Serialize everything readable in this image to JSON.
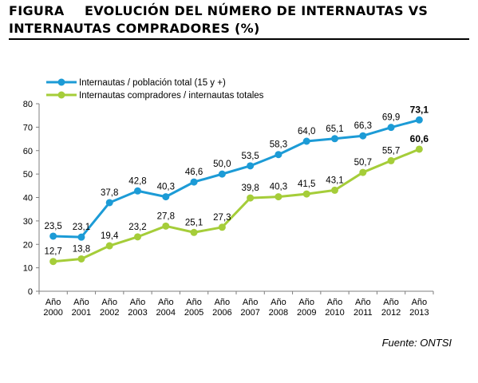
{
  "figure": {
    "label": "FIGURA",
    "title_line1": "EVOLUCIÓN DEL NÚMERO DE INTERNAUTAS VS",
    "title_line2": "INTERNAUTAS COMPRADORES (%)",
    "source": "Fuente: ONTSI"
  },
  "chart_data": {
    "type": "line",
    "categories_top": [
      "Año",
      "Año",
      "Año",
      "Año",
      "Año",
      "Año",
      "Año",
      "Año",
      "Año",
      "Año",
      "Año",
      "Año",
      "Año",
      "Año"
    ],
    "categories": [
      "2000",
      "2001",
      "2002",
      "2003",
      "2004",
      "2005",
      "2006",
      "2007",
      "2008",
      "2009",
      "2010",
      "2011",
      "2012",
      "2013"
    ],
    "ylim": [
      0,
      80
    ],
    "yticks": [
      0,
      10,
      20,
      30,
      40,
      50,
      60,
      70,
      80
    ],
    "grid": false,
    "legend_position": "top-left",
    "series": [
      {
        "name": "Internautas / población total (15 y +)",
        "color": "#1c9bd6",
        "values": [
          23.5,
          23.1,
          37.8,
          42.8,
          40.3,
          46.6,
          50.0,
          53.5,
          58.3,
          64.0,
          65.1,
          66.3,
          69.9,
          73.1
        ],
        "labels": [
          "23,5",
          "23,1",
          "37,8",
          "42,8",
          "40,3",
          "46,6",
          "50,0",
          "53,5",
          "58,3",
          "64,0",
          "65,1",
          "66,3",
          "69,9",
          "73,1"
        ]
      },
      {
        "name": "Internautas compradores / internautas totales",
        "color": "#a5cd39",
        "values": [
          12.7,
          13.8,
          19.4,
          23.2,
          27.8,
          25.1,
          27.3,
          39.8,
          40.3,
          41.5,
          43.1,
          50.7,
          55.7,
          60.6
        ],
        "labels": [
          "12,7",
          "13,8",
          "19,4",
          "23,2",
          "27,8",
          "25,1",
          "27,3",
          "39,8",
          "40,3",
          "41,5",
          "43,1",
          "50,7",
          "55,7",
          "60,6"
        ]
      }
    ]
  }
}
